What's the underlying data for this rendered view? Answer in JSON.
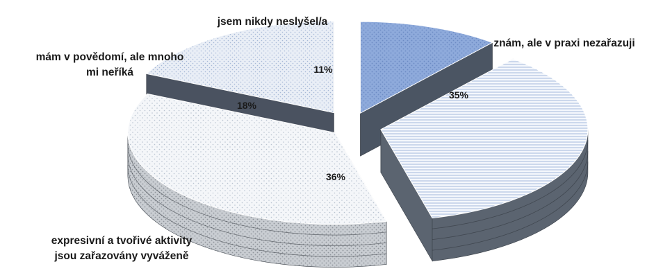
{
  "chart_data": {
    "type": "pie",
    "style": "3d-exploded",
    "legend": "none",
    "slices": [
      {
        "label": "jsem nikdy neslyšel/a",
        "value": 11,
        "value_label": "11%",
        "color": "#8eaadb",
        "pattern": "dots"
      },
      {
        "label": "znám, ale v praxi nezařazuji",
        "value": 35,
        "value_label": "35%",
        "color": "#dde7f5",
        "pattern": "horizontal-lines"
      },
      {
        "label": "expresivní a tvořivé aktivity jsou zařazovány vyváženě",
        "label_lines": [
          "expresivní a tvořivé aktivity",
          "jsou zařazovány vyváženě"
        ],
        "value": 36,
        "value_label": "36%",
        "color": "#f2f4f7",
        "pattern": "dots"
      },
      {
        "label": "mám v povědomí, ale mnoho mi neříká",
        "label_lines": [
          "mám v povědomí, ale mnoho",
          "mi neříká"
        ],
        "value": 18,
        "value_label": "18%",
        "color": "#e7edf6",
        "pattern": "dots"
      }
    ]
  }
}
